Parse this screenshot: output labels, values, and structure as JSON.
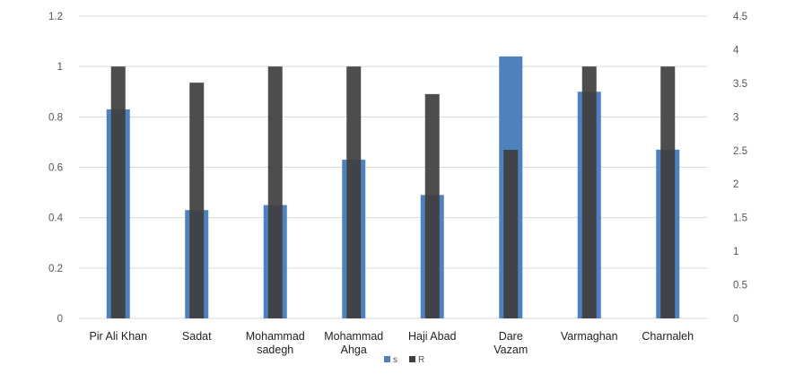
{
  "chart_data": {
    "type": "bar",
    "categories": [
      [
        "Pir Ali Khan"
      ],
      [
        "Sadat"
      ],
      [
        "Mohammad",
        "sadegh"
      ],
      [
        "Mohammad",
        "Ahga"
      ],
      [
        "Haji Abad"
      ],
      [
        "Dare",
        "Vazam"
      ],
      [
        "Varmaghan"
      ],
      [
        "Charnaleh"
      ]
    ],
    "series": [
      {
        "name": "s",
        "axis": "left",
        "color": "#4F81BD",
        "values": [
          0.83,
          0.43,
          0.45,
          0.63,
          0.49,
          1.04,
          0.9,
          0.67
        ]
      },
      {
        "name": "R",
        "axis": "right",
        "color": "#404040",
        "values": [
          3.75,
          3.51,
          3.75,
          3.75,
          3.34,
          2.51,
          3.75,
          3.75
        ]
      }
    ],
    "y_left": {
      "lim": [
        0,
        1.2
      ],
      "ticks": [
        "0",
        "0.2",
        "0.4",
        "0.6",
        "0.8",
        "1",
        "1.2"
      ]
    },
    "y_right": {
      "lim": [
        0,
        4.5
      ],
      "ticks": [
        "0",
        "0.5",
        "1",
        "1.5",
        "2",
        "2.5",
        "3",
        "3.5",
        "4",
        "4.5"
      ]
    },
    "grid": true,
    "legend_position": "bottom",
    "title": "",
    "xlabel": "",
    "ylabel": ""
  }
}
